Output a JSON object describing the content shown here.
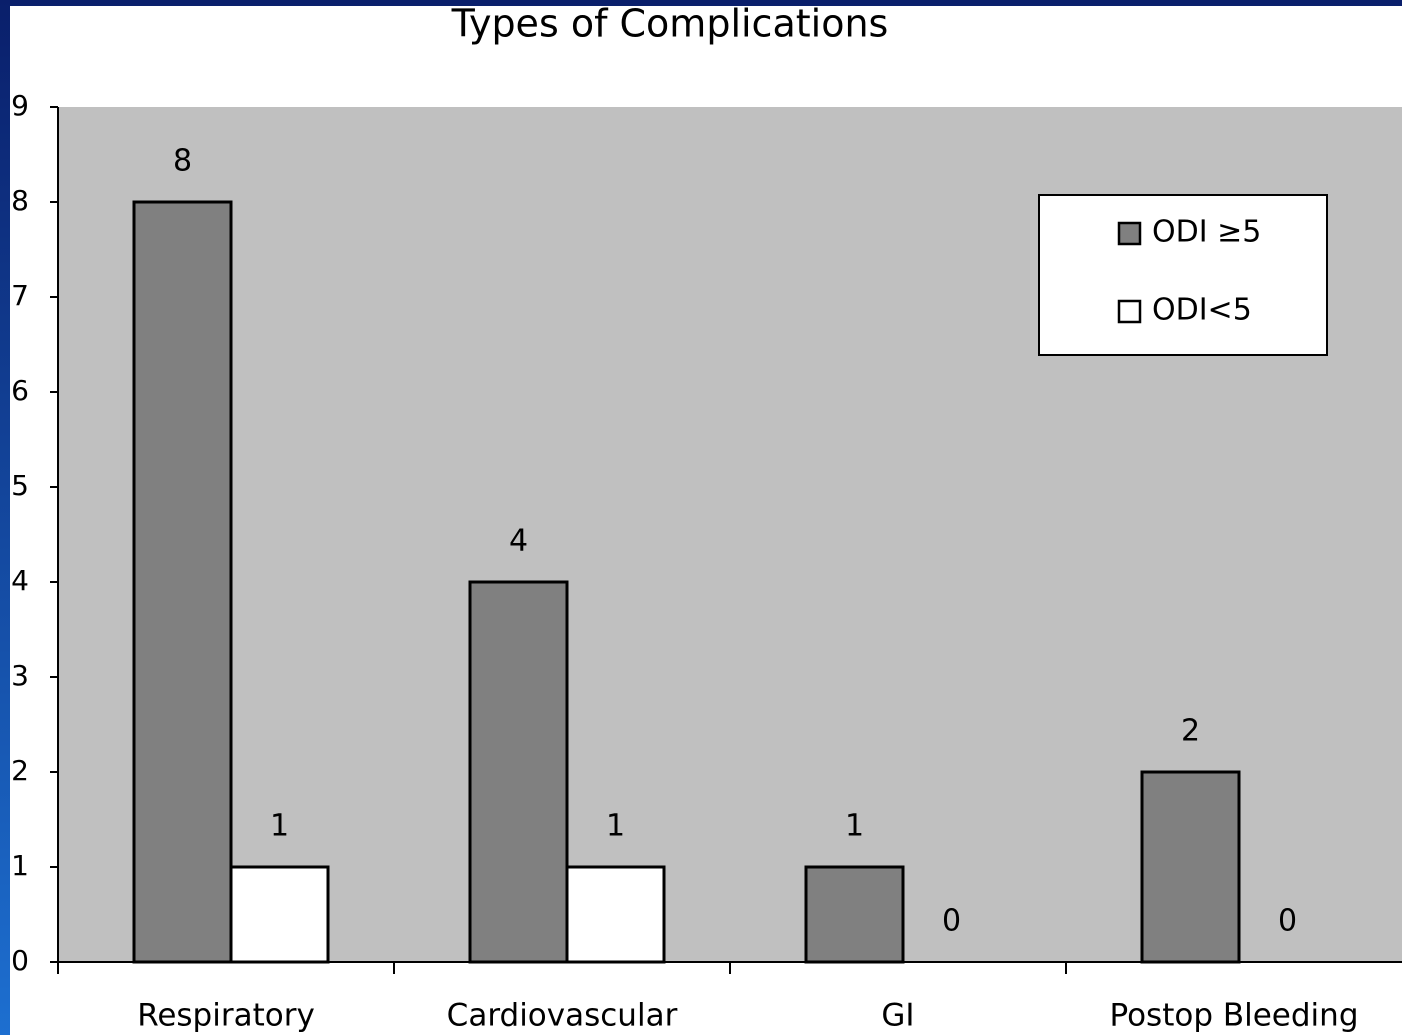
{
  "chart_data": {
    "type": "bar",
    "title": "Types of Complications",
    "categories": [
      "Respiratory",
      "Cardiovascular",
      "GI",
      "Postop Bleeding"
    ],
    "series": [
      {
        "name": "ODI ≥5",
        "color": "#808080",
        "values": [
          8,
          4,
          1,
          2
        ]
      },
      {
        "name": "ODI<5",
        "color": "#ffffff",
        "values": [
          1,
          1,
          0,
          0
        ]
      }
    ],
    "ylim": [
      0,
      9
    ],
    "yticks": [
      0,
      1,
      2,
      3,
      4,
      5,
      6,
      7,
      8,
      9
    ],
    "legend": "upper right",
    "plot_background": "#c0c0c0"
  }
}
